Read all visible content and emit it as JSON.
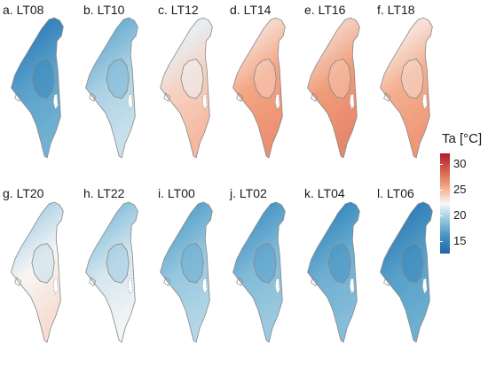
{
  "panels": [
    {
      "label": "a. LT08",
      "temp": 16.2
    },
    {
      "label": "b. LT10",
      "temp": 19.3
    },
    {
      "label": "c. LT12",
      "temp": 23.2
    },
    {
      "label": "d. LT14",
      "temp": 25.0
    },
    {
      "label": "e. LT16",
      "temp": 25.4
    },
    {
      "label": "f. LT18",
      "temp": 24.6
    },
    {
      "label": "g. LT20",
      "temp": 21.8
    },
    {
      "label": "h. LT22",
      "temp": 20.6
    },
    {
      "label": "i. LT00",
      "temp": 18.6
    },
    {
      "label": "j. LT02",
      "temp": 17.8
    },
    {
      "label": "k. LT04",
      "temp": 17.0
    },
    {
      "label": "l. LT06",
      "temp": 16.0
    }
  ],
  "legend": {
    "title": "Ta [°C]",
    "ticks": [
      "30",
      "25",
      "20",
      "15"
    ],
    "tick_values": [
      30,
      25,
      20,
      15
    ],
    "min": 12.5,
    "max": 32,
    "colors": [
      "#2166ac",
      "#4393c3",
      "#92c5de",
      "#f7f7f7",
      "#f4a582",
      "#d6604d",
      "#b2182b"
    ]
  }
}
